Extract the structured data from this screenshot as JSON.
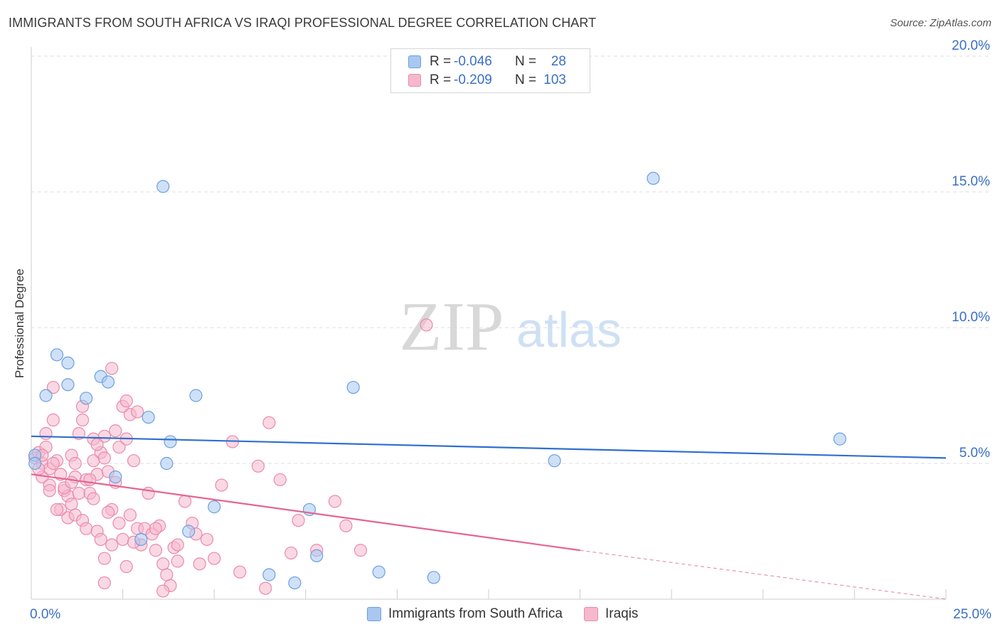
{
  "header": {
    "title": "IMMIGRANTS FROM SOUTH AFRICA VS IRAQI PROFESSIONAL DEGREE CORRELATION CHART",
    "source": "Source: ZipAtlas.com"
  },
  "watermark": {
    "part1": "ZIP",
    "part2": "atlas"
  },
  "legend": {
    "rows": [
      {
        "r_label": "R =",
        "r_value": "-0.046",
        "n_label": "N =",
        "n_value": "28"
      },
      {
        "r_label": "R =",
        "r_value": "-0.209",
        "n_label": "N =",
        "n_value": "103"
      }
    ]
  },
  "bottom_legend": {
    "series1": "Immigrants from South Africa",
    "series2": "Iraqis"
  },
  "colors": {
    "blue_fill": "#a8c8f0",
    "blue_stroke": "#6a9fe0",
    "blue_line": "#2f6fcf",
    "pink_fill": "#f6b8cc",
    "pink_stroke": "#ea8aaa",
    "pink_line": "#e4658f",
    "tick_text": "#3a6fc4",
    "grid": "#dddddd"
  },
  "chart_data": {
    "type": "scatter",
    "title": "IMMIGRANTS FROM SOUTH AFRICA VS IRAQI PROFESSIONAL DEGREE CORRELATION CHART",
    "xlabel": "",
    "ylabel": "Professional Degree",
    "xlim": [
      0,
      25
    ],
    "ylim": [
      0,
      20
    ],
    "x_tick_labels": [
      {
        "value": 0,
        "label": "0.0%"
      },
      {
        "value": 25,
        "label": "25.0%"
      }
    ],
    "y_tick_labels": [
      {
        "value": 5,
        "label": "5.0%"
      },
      {
        "value": 10,
        "label": "10.0%"
      },
      {
        "value": 15,
        "label": "15.0%"
      },
      {
        "value": 20,
        "label": "20.0%"
      }
    ],
    "x_minor_ticks": [
      0,
      2.5,
      5,
      7.5,
      10,
      12.5,
      15,
      17.5,
      20,
      22.5,
      25
    ],
    "series": [
      {
        "name": "Immigrants from South Africa",
        "color": "blue",
        "R": -0.046,
        "N": 28,
        "trend": {
          "x0": 0,
          "y0": 6.0,
          "x1": 25,
          "y1": 5.2
        },
        "points": [
          [
            0.1,
            5.3
          ],
          [
            0.7,
            9.0
          ],
          [
            0.4,
            7.5
          ],
          [
            1.0,
            8.7
          ],
          [
            1.0,
            7.9
          ],
          [
            1.5,
            7.4
          ],
          [
            1.9,
            8.2
          ],
          [
            2.1,
            8.0
          ],
          [
            2.3,
            4.5
          ],
          [
            3.2,
            6.7
          ],
          [
            3.6,
            15.2
          ],
          [
            3.8,
            5.8
          ],
          [
            3.7,
            5.0
          ],
          [
            4.5,
            7.5
          ],
          [
            4.3,
            2.5
          ],
          [
            5.0,
            3.4
          ],
          [
            3.0,
            2.2
          ],
          [
            7.2,
            0.6
          ],
          [
            6.5,
            0.9
          ],
          [
            7.6,
            3.3
          ],
          [
            7.8,
            1.6
          ],
          [
            8.8,
            7.8
          ],
          [
            9.5,
            1.0
          ],
          [
            11.0,
            0.8
          ],
          [
            14.3,
            5.1
          ],
          [
            17.0,
            15.5
          ],
          [
            22.1,
            5.9
          ],
          [
            0.1,
            5.0
          ]
        ]
      },
      {
        "name": "Iraqis",
        "color": "pink",
        "R": -0.209,
        "N": 103,
        "trend": {
          "x0": 0,
          "y0": 4.6,
          "x1": 15,
          "y1": 1.8,
          "dash_x1": 25,
          "dash_y1": 0.0
        },
        "points": [
          [
            0.1,
            5.2
          ],
          [
            0.2,
            5.4
          ],
          [
            0.3,
            5.0
          ],
          [
            0.4,
            5.6
          ],
          [
            0.3,
            4.5
          ],
          [
            0.5,
            4.8
          ],
          [
            0.6,
            6.6
          ],
          [
            0.5,
            4.2
          ],
          [
            0.7,
            5.1
          ],
          [
            0.8,
            4.6
          ],
          [
            0.9,
            4.0
          ],
          [
            1.0,
            3.8
          ],
          [
            0.4,
            6.1
          ],
          [
            0.6,
            7.8
          ],
          [
            1.1,
            5.3
          ],
          [
            1.2,
            4.5
          ],
          [
            1.3,
            6.1
          ],
          [
            1.4,
            6.6
          ],
          [
            1.2,
            5.0
          ],
          [
            1.5,
            4.4
          ],
          [
            1.6,
            3.9
          ],
          [
            1.7,
            5.1
          ],
          [
            1.8,
            4.6
          ],
          [
            1.4,
            7.1
          ],
          [
            1.9,
            5.4
          ],
          [
            2.0,
            5.2
          ],
          [
            2.1,
            4.7
          ],
          [
            2.2,
            3.3
          ],
          [
            2.3,
            4.3
          ],
          [
            2.4,
            5.6
          ],
          [
            2.5,
            7.1
          ],
          [
            2.6,
            7.3
          ],
          [
            2.7,
            6.8
          ],
          [
            2.8,
            5.1
          ],
          [
            2.2,
            8.5
          ],
          [
            2.3,
            6.2
          ],
          [
            2.6,
            5.9
          ],
          [
            2.9,
            6.9
          ],
          [
            1.7,
            5.9
          ],
          [
            2.0,
            6.0
          ],
          [
            0.8,
            3.3
          ],
          [
            1.0,
            3.0
          ],
          [
            1.1,
            3.5
          ],
          [
            1.2,
            3.1
          ],
          [
            1.4,
            2.9
          ],
          [
            1.5,
            2.6
          ],
          [
            1.7,
            3.7
          ],
          [
            1.8,
            2.5
          ],
          [
            1.9,
            2.2
          ],
          [
            2.0,
            1.5
          ],
          [
            2.2,
            2.0
          ],
          [
            2.5,
            2.2
          ],
          [
            2.7,
            3.1
          ],
          [
            2.9,
            2.6
          ],
          [
            3.0,
            2.0
          ],
          [
            3.1,
            2.6
          ],
          [
            3.3,
            2.4
          ],
          [
            3.4,
            1.8
          ],
          [
            3.5,
            2.7
          ],
          [
            3.6,
            1.3
          ],
          [
            3.7,
            0.9
          ],
          [
            3.8,
            0.5
          ],
          [
            3.9,
            1.9
          ],
          [
            4.0,
            2.0
          ],
          [
            4.2,
            3.6
          ],
          [
            4.4,
            2.8
          ],
          [
            4.6,
            1.3
          ],
          [
            4.8,
            2.2
          ],
          [
            5.0,
            1.5
          ],
          [
            5.2,
            4.2
          ],
          [
            5.5,
            5.8
          ],
          [
            5.7,
            1.0
          ],
          [
            6.2,
            4.9
          ],
          [
            6.4,
            0.4
          ],
          [
            6.5,
            6.5
          ],
          [
            6.8,
            4.4
          ],
          [
            7.1,
            1.7
          ],
          [
            7.3,
            2.9
          ],
          [
            7.8,
            1.8
          ],
          [
            8.3,
            3.6
          ],
          [
            8.6,
            2.7
          ],
          [
            9.0,
            1.8
          ],
          [
            10.8,
            10.1
          ],
          [
            0.2,
            4.8
          ],
          [
            0.3,
            5.3
          ],
          [
            0.5,
            4.0
          ],
          [
            0.6,
            5.0
          ],
          [
            0.7,
            3.3
          ],
          [
            0.9,
            4.1
          ],
          [
            1.1,
            4.3
          ],
          [
            1.3,
            3.9
          ],
          [
            1.6,
            4.4
          ],
          [
            1.8,
            5.7
          ],
          [
            2.1,
            3.2
          ],
          [
            2.4,
            2.8
          ],
          [
            2.6,
            1.2
          ],
          [
            2.8,
            2.1
          ],
          [
            3.2,
            3.9
          ],
          [
            3.4,
            2.6
          ],
          [
            3.6,
            0.3
          ],
          [
            4.0,
            1.4
          ],
          [
            4.5,
            2.4
          ],
          [
            2.0,
            0.6
          ]
        ]
      }
    ]
  }
}
